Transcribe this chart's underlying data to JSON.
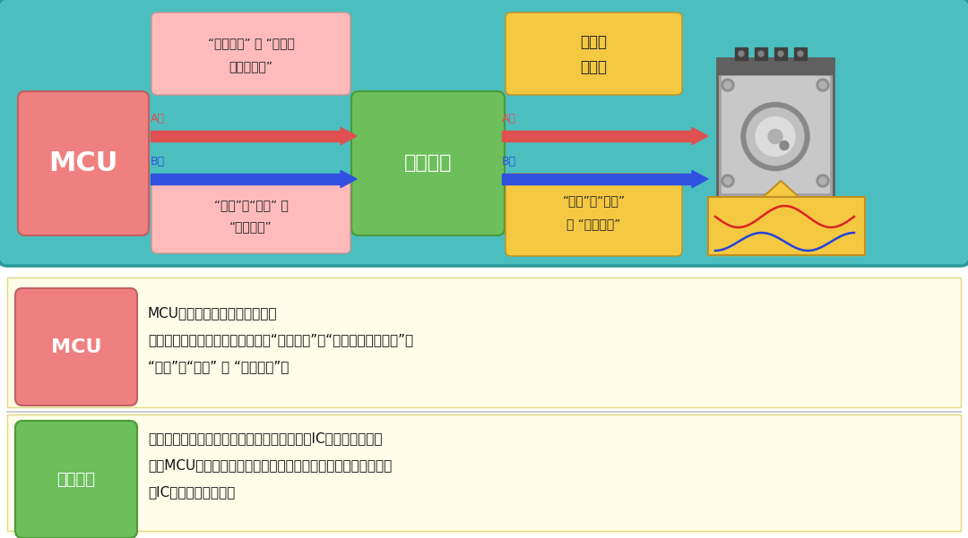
{
  "bg_color": "#4BBFBF",
  "white_bg": "#FFFFFF",
  "mcu_box_color": "#F08080",
  "mcu_box_edge": "#C06060",
  "distributor_box_color": "#6CBF5A",
  "distributor_box_edge": "#4A9A38",
  "pink_note_color": "#FFBBBB",
  "yellow_note_color": "#F5C842",
  "arrow_red": "#E05050",
  "arrow_blue": "#3050E0",
  "arrow_red_right": "#E07030",
  "mcu_text": "MCU",
  "dist_text": "分立器件",
  "note1_line1": "“重复次数” 和 “一个步",
  "note1_line2": "距角的时间”",
  "note2_line1": "“方向”、“大小” 和",
  "note2_line2": "“电流合成”",
  "note3_line1": "高电压",
  "note3_line2": "大电流",
  "note4_line1": "“方向”、“大小”",
  "note4_line2": "和 “电流合成”",
  "a_phase": "A相",
  "b_phase": "B相",
  "legend_mcu_title": "MCU",
  "legend_mcu_line1": "MCU相当于是控制电机的大脑。",
  "legend_mcu_line2": "根据励磁模式，它向分立器件发送“重复次数”、“一个步距角的时间”、",
  "legend_mcu_line3": "“方向”、“大小” 和 “电流合成”。",
  "legend_dist_title": "分立器件",
  "legend_dist_line1": "这里使用的分立器件只是具有单一功能的简单IC，比如晶体管。",
  "legend_dist_line2": "根据MCU的信号输出，它将放大电压和电流并将其发送至电机。",
  "legend_dist_line3": "该IC向电机提供电流。"
}
